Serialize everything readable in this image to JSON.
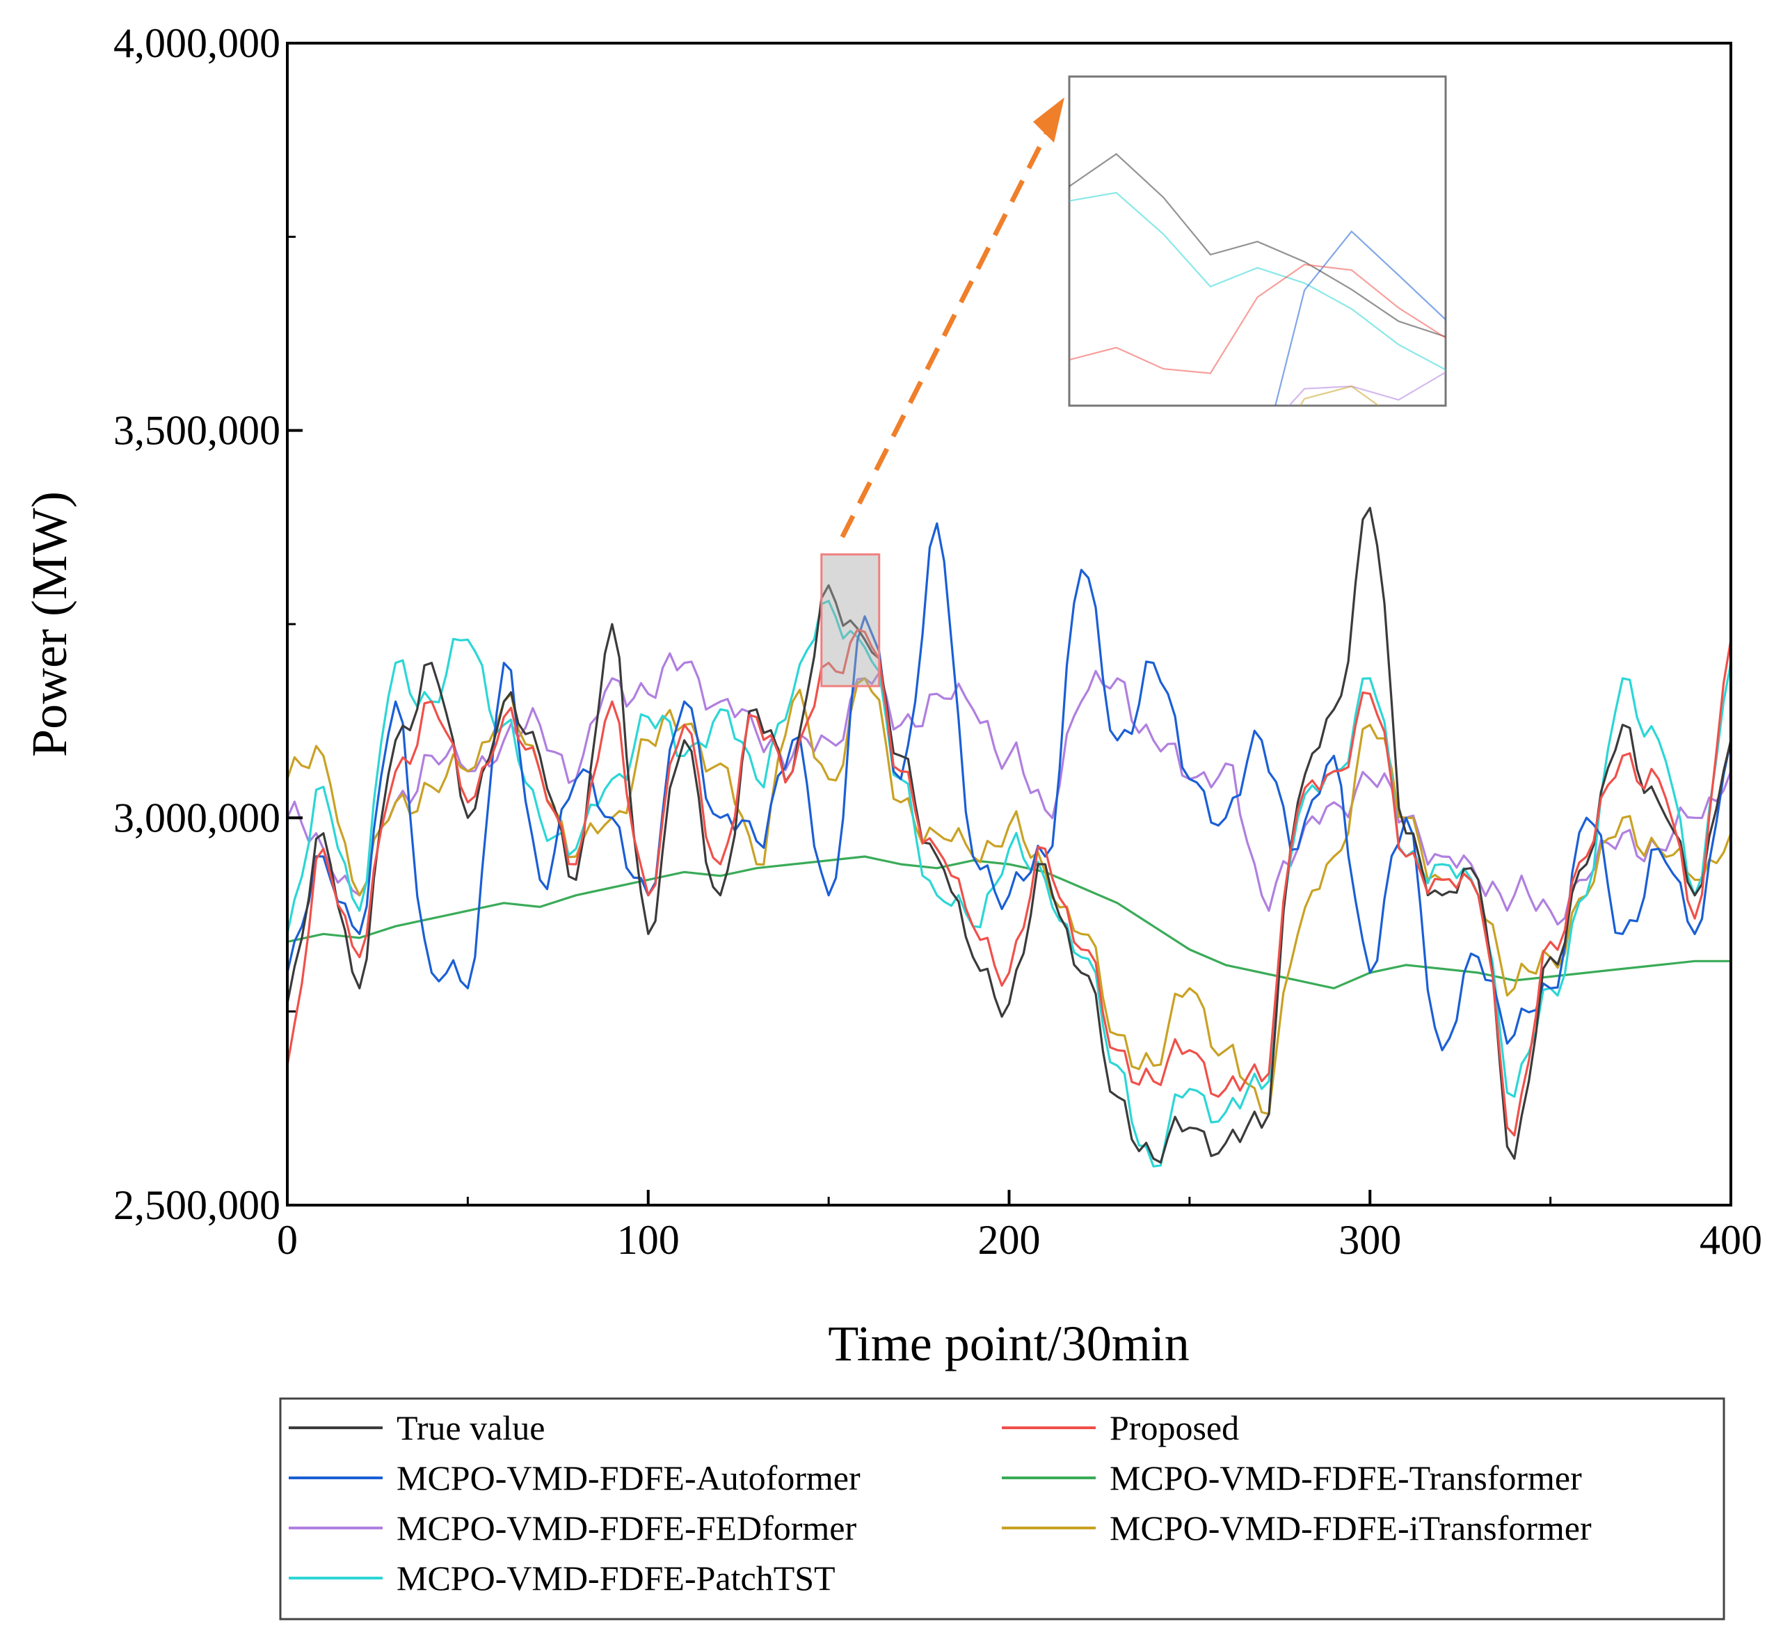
{
  "chart_data": {
    "type": "line",
    "title": "",
    "xlabel": "Time point/30min",
    "ylabel": "Power (MW)",
    "xlim": [
      0,
      400
    ],
    "ylim": [
      2500000,
      4000000
    ],
    "x_ticks": [
      0,
      100,
      200,
      300,
      400
    ],
    "x_tick_labels": [
      "0",
      "100",
      "200",
      "300",
      "400"
    ],
    "y_ticks": [
      2500000,
      3000000,
      3500000,
      4000000
    ],
    "y_tick_labels": [
      "2,500,000",
      "3,000,000",
      "3,500,000",
      "4,000,000"
    ],
    "grid": false,
    "legend_position": "bottom (below plot, two columns)",
    "x_step": 10,
    "series": [
      {
        "name": "MCPO-VMD-FDFE-Transformer",
        "color": "#3aab58",
        "values": [
          2840000,
          2850000,
          2845000,
          2860000,
          2870000,
          2880000,
          2890000,
          2885000,
          2900000,
          2910000,
          2920000,
          2930000,
          2925000,
          2935000,
          2940000,
          2945000,
          2950000,
          2940000,
          2935000,
          2945000,
          2940000,
          2930000,
          2910000,
          2890000,
          2860000,
          2830000,
          2810000,
          2800000,
          2790000,
          2780000,
          2800000,
          2810000,
          2805000,
          2800000,
          2790000,
          2795000,
          2800000,
          2805000,
          2810000,
          2815000,
          2815000
        ]
      },
      {
        "name": "MCPO-VMD-FDFE-FEDformer",
        "color": "#b07fe0",
        "values": [
          3000000,
          2960000,
          2900000,
          3020000,
          3080000,
          3060000,
          3100000,
          3120000,
          3050000,
          3180000,
          3160000,
          3200000,
          3150000,
          3110000,
          3080000,
          3100000,
          3180000,
          3120000,
          3160000,
          3140000,
          3080000,
          3010000,
          3150000,
          3180000,
          3100000,
          3050000,
          3070000,
          2900000,
          2960000,
          3020000,
          3050000,
          3000000,
          2950000,
          2920000,
          2900000,
          2880000,
          2920000,
          2980000,
          2960000,
          3000000,
          3060000
        ]
      },
      {
        "name": "MCPO-VMD-FDFE-iTransformer",
        "color": "#c9a224",
        "values": [
          3050000,
          3080000,
          2900000,
          3020000,
          3040000,
          3060000,
          3150000,
          3060000,
          2950000,
          3000000,
          3100000,
          3120000,
          3070000,
          2940000,
          3150000,
          3050000,
          3180000,
          3020000,
          2980000,
          2950000,
          2990000,
          2930000,
          2850000,
          2720000,
          2680000,
          2780000,
          2700000,
          2620000,
          2850000,
          2950000,
          3120000,
          3000000,
          2920000,
          2900000,
          2780000,
          2820000,
          2900000,
          3000000,
          2960000,
          2920000,
          2980000
        ]
      },
      {
        "name": "MCPO-VMD-FDFE-PatchTST",
        "color": "#2cd6d6",
        "values": [
          2850000,
          3040000,
          2880000,
          3200000,
          3150000,
          3230000,
          3120000,
          3000000,
          2960000,
          3050000,
          3130000,
          3080000,
          3140000,
          3050000,
          3160000,
          3280000,
          3220000,
          3050000,
          2900000,
          2860000,
          2960000,
          2920000,
          2820000,
          2680000,
          2550000,
          2650000,
          2620000,
          2650000,
          3000000,
          3060000,
          3180000,
          2950000,
          2940000,
          2900000,
          2640000,
          2780000,
          2900000,
          3180000,
          3100000,
          2900000,
          3200000
        ]
      },
      {
        "name": "MCPO-VMD-FDFE-Autoformer",
        "color": "#1a5fd6",
        "values": [
          2800000,
          2950000,
          2850000,
          3150000,
          2800000,
          2780000,
          3200000,
          2920000,
          3050000,
          3000000,
          2900000,
          3150000,
          3000000,
          2970000,
          3100000,
          2900000,
          3260000,
          3050000,
          3380000,
          2950000,
          2900000,
          2950000,
          3320000,
          3100000,
          3200000,
          3050000,
          3000000,
          3100000,
          2960000,
          3080000,
          2800000,
          3000000,
          2700000,
          2820000,
          2720000,
          2780000,
          3000000,
          2850000,
          2960000,
          2850000,
          3100000
        ]
      },
      {
        "name": "True value",
        "color": "#3b3b3b",
        "values": [
          2760000,
          2980000,
          2780000,
          3100000,
          3200000,
          3000000,
          3150000,
          3080000,
          2920000,
          3250000,
          2850000,
          3100000,
          2900000,
          3140000,
          3060000,
          3300000,
          3230000,
          3080000,
          2950000,
          2820000,
          2760000,
          2940000,
          2800000,
          2640000,
          2560000,
          2600000,
          2580000,
          2600000,
          3020000,
          3140000,
          3400000,
          2980000,
          2900000,
          2920000,
          2560000,
          2820000,
          2940000,
          3120000,
          3020000,
          2900000,
          3100000
        ]
      },
      {
        "name": "Proposed",
        "color": "#f0504a",
        "values": [
          2680000,
          2960000,
          2820000,
          3060000,
          3150000,
          3020000,
          3130000,
          3060000,
          2940000,
          3150000,
          2900000,
          3120000,
          2940000,
          3130000,
          3060000,
          3200000,
          3240000,
          3060000,
          2960000,
          2860000,
          2800000,
          2960000,
          2830000,
          2700000,
          2660000,
          2700000,
          2650000,
          2660000,
          3010000,
          3060000,
          3160000,
          2950000,
          2920000,
          2900000,
          2590000,
          2840000,
          2950000,
          3080000,
          3050000,
          2870000,
          3230000
        ]
      }
    ],
    "zoom_box": {
      "x_range": [
        148,
        164
      ],
      "y_range": [
        3170000,
        3340000
      ]
    },
    "legend": {
      "entries": [
        "True value",
        "Proposed",
        "MCPO-VMD-FDFE-Autoformer",
        "MCPO-VMD-FDFE-Transformer",
        "MCPO-VMD-FDFE-FEDformer",
        "MCPO-VMD-FDFE-iTransformer",
        "MCPO-VMD-FDFE-PatchTST"
      ]
    }
  }
}
